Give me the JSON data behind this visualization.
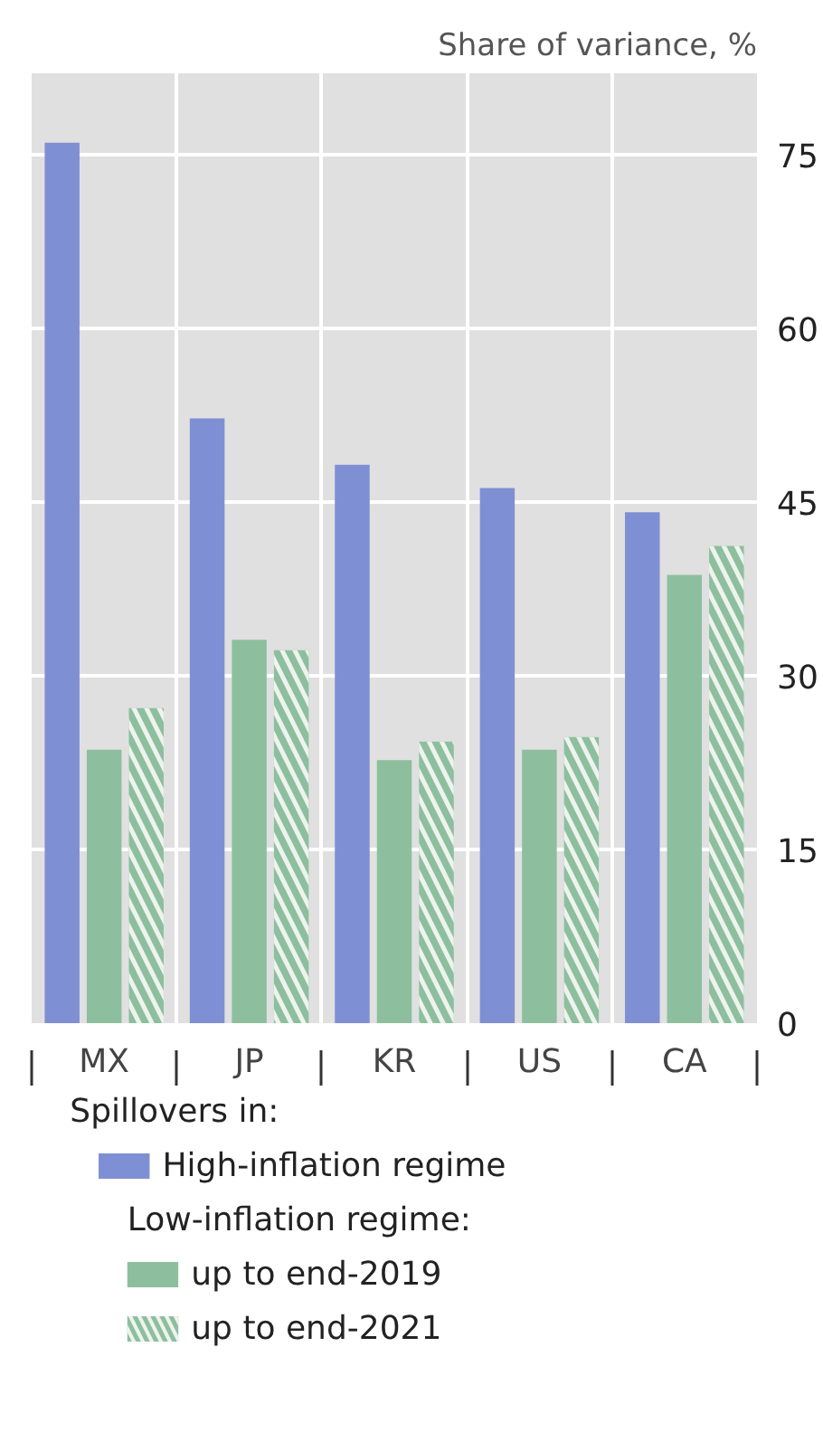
{
  "chart_data": {
    "type": "bar",
    "title": "Share of variance, %",
    "categories": [
      "MX",
      "JP",
      "KR",
      "US",
      "CA"
    ],
    "series": [
      {
        "name": "High-inflation regime",
        "color": "#7f8fd4",
        "values": [
          76.0,
          52.2,
          48.2,
          46.2,
          44.1
        ]
      },
      {
        "name": "up to end-2019",
        "color": "#8dbf9e",
        "values": [
          23.6,
          33.1,
          22.7,
          23.6,
          38.7
        ]
      },
      {
        "name": "up to end-2021",
        "color": "#8dbf9e",
        "values": [
          27.2,
          32.2,
          24.3,
          24.7,
          41.2
        ]
      }
    ],
    "ylim": [
      0,
      82
    ],
    "yticks": [
      0,
      15,
      30,
      45,
      60,
      75
    ],
    "grid": "y",
    "legend": "bottom",
    "legend_title": "Spillovers in:",
    "annotations": [
      "Low-inflation regime:"
    ]
  }
}
